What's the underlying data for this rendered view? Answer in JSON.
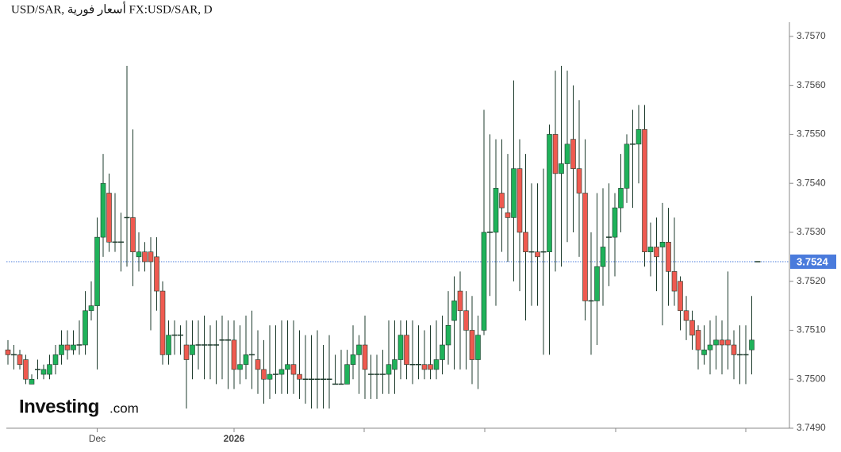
{
  "chart_data": {
    "type": "candlestick",
    "title": "USD/SAR, أسعار فورية FX:USD/SAR, D",
    "logo": {
      "name": "Investing",
      "suffix": ".com"
    },
    "categories": [
      null,
      null,
      null,
      null,
      null,
      null,
      null,
      null,
      null,
      null,
      null,
      null,
      null,
      null,
      null,
      "Dec",
      null,
      null,
      null,
      null,
      null,
      null,
      null,
      null,
      null,
      null,
      null,
      null,
      null,
      null,
      null,
      null,
      null,
      null,
      null,
      null,
      null,
      null,
      "2026",
      null,
      null,
      null,
      null,
      null,
      null,
      null,
      null,
      null,
      null,
      null,
      null,
      null,
      null,
      null,
      null,
      null,
      null,
      null,
      null,
      null,
      null,
      null,
      null,
      null,
      null,
      null,
      null,
      null,
      null,
      null,
      null,
      null,
      null,
      null,
      null,
      null,
      null,
      null,
      null,
      null,
      null,
      null,
      null,
      null,
      null,
      null,
      null,
      null,
      null,
      null,
      null,
      null,
      null,
      null,
      null,
      null,
      null,
      null,
      null,
      null,
      null,
      null,
      null,
      null,
      null,
      null,
      null,
      null,
      null,
      null,
      null,
      null,
      null,
      null,
      null,
      null,
      null,
      null,
      null,
      null,
      null,
      null,
      null,
      null,
      null,
      null,
      null
    ],
    "open": [
      3.7506,
      3.7505,
      3.7505,
      3.7504,
      3.7499,
      3.7502,
      3.7501,
      3.7501,
      3.7503,
      3.7505,
      3.7507,
      3.7506,
      3.7507,
      3.7507,
      3.7514,
      3.7515,
      3.7529,
      3.7538,
      3.7528,
      3.7528,
      3.7533,
      3.7533,
      3.7525,
      3.7526,
      3.7526,
      3.7525,
      3.7518,
      3.7505,
      3.7509,
      3.7509,
      3.7507,
      3.7505,
      3.7507,
      3.7507,
      3.7507,
      3.7507,
      3.7508,
      3.7508,
      3.7508,
      3.7502,
      3.7503,
      3.7505,
      3.7504,
      3.7502,
      3.75,
      3.7501,
      3.7501,
      3.7502,
      3.7503,
      3.7501,
      3.75,
      3.75,
      3.75,
      3.75,
      3.75,
      3.7499,
      3.7499,
      3.7499,
      3.7503,
      3.7505,
      3.7507,
      3.7501,
      3.7501,
      3.7501,
      3.7501,
      3.7502,
      3.7504,
      3.7509,
      3.7503,
      3.7503,
      3.7503,
      3.7503,
      3.7502,
      3.7504,
      3.7507,
      3.7512,
      3.7518,
      3.7514,
      3.751,
      3.7504,
      3.751,
      3.753,
      3.753,
      3.7538,
      3.7534,
      3.7533,
      3.7543,
      3.753,
      3.7526,
      3.7526,
      3.7526,
      3.7526,
      3.755,
      3.7542,
      3.7544,
      3.7549,
      3.7543,
      3.7538,
      3.7516,
      3.7516,
      3.7523,
      3.7529,
      3.7529,
      3.7535,
      3.7539,
      3.7548,
      3.7548,
      3.7551,
      3.7526,
      3.7527,
      3.7527,
      3.7528,
      3.7522,
      3.752,
      3.7514,
      3.7512,
      3.751,
      3.7505,
      3.7506,
      3.7507,
      3.7508,
      3.7508,
      3.7507,
      3.7505,
      3.7505,
      3.7506,
      3.7524
    ],
    "high": [
      3.7508,
      3.7507,
      3.7506,
      3.7505,
      3.7501,
      3.7504,
      3.7503,
      3.7505,
      3.7507,
      3.751,
      3.751,
      3.751,
      3.7512,
      3.7518,
      3.752,
      3.7533,
      3.7546,
      3.7542,
      3.7538,
      3.7534,
      3.7564,
      3.7551,
      3.753,
      3.7528,
      3.7529,
      3.7529,
      3.752,
      3.7512,
      3.7512,
      3.7511,
      3.7512,
      3.7512,
      3.7512,
      3.7513,
      3.7511,
      3.7512,
      3.7513,
      3.7512,
      3.7512,
      3.7511,
      3.7513,
      3.7514,
      3.751,
      3.7508,
      3.7511,
      3.7511,
      3.7512,
      3.7512,
      3.7512,
      3.751,
      3.7509,
      3.7509,
      3.751,
      3.7507,
      3.7509,
      3.7505,
      3.7506,
      3.7506,
      3.7511,
      3.7509,
      3.7513,
      3.7505,
      3.7505,
      3.7506,
      3.7512,
      3.7512,
      3.7512,
      3.7512,
      3.7512,
      3.7511,
      3.751,
      3.7511,
      3.7512,
      3.7513,
      3.7518,
      3.7521,
      3.7522,
      3.7518,
      3.7517,
      3.7513,
      3.7555,
      3.755,
      3.7549,
      3.7549,
      3.7546,
      3.7561,
      3.7549,
      3.7546,
      3.754,
      3.754,
      3.7543,
      3.7552,
      3.7563,
      3.7564,
      3.7563,
      3.756,
      3.7557,
      3.7549,
      3.753,
      3.7538,
      3.7539,
      3.754,
      3.7538,
      3.7546,
      3.755,
      3.7555,
      3.7556,
      3.7556,
      3.7532,
      3.7533,
      3.7536,
      3.7535,
      3.7533,
      3.7521,
      3.7517,
      3.7514,
      3.7511,
      3.7511,
      3.7512,
      3.7513,
      3.7512,
      3.7522,
      3.751,
      3.7511,
      3.7511,
      3.7517,
      3.7524
    ],
    "low": [
      3.7503,
      3.7502,
      3.7502,
      3.7499,
      3.7499,
      3.75,
      3.75,
      3.75,
      3.7501,
      3.7503,
      3.7504,
      3.7505,
      3.7505,
      3.7505,
      3.7512,
      3.7502,
      3.7525,
      3.7526,
      3.7526,
      3.7522,
      3.7523,
      3.7519,
      3.7522,
      3.7522,
      3.751,
      3.7514,
      3.7503,
      3.7503,
      3.7505,
      3.7505,
      3.7494,
      3.75,
      3.7502,
      3.75,
      3.75,
      3.7499,
      3.75,
      3.7498,
      3.7498,
      3.7499,
      3.75,
      3.7498,
      3.7497,
      3.7495,
      3.7496,
      3.7497,
      3.7497,
      3.7497,
      3.7497,
      3.7496,
      3.7495,
      3.7494,
      3.7494,
      3.7494,
      3.7494,
      3.7499,
      3.7499,
      3.7499,
      3.75,
      3.7497,
      3.7496,
      3.7496,
      3.7496,
      3.7497,
      3.7497,
      3.7497,
      3.75,
      3.75,
      3.7499,
      3.75,
      3.75,
      3.75,
      3.75,
      3.7501,
      3.7503,
      3.7502,
      3.7502,
      3.7502,
      3.7499,
      3.7498,
      3.7509,
      3.7517,
      3.7515,
      3.7526,
      3.7524,
      3.752,
      3.7518,
      3.7512,
      3.7515,
      3.7515,
      3.7505,
      3.7505,
      3.7522,
      3.7523,
      3.7528,
      3.753,
      3.7525,
      3.7512,
      3.7505,
      3.7507,
      3.7515,
      3.7519,
      3.7521,
      3.753,
      3.7536,
      3.7535,
      3.754,
      3.7523,
      3.7521,
      3.7518,
      3.7511,
      3.7515,
      3.7515,
      3.751,
      3.7508,
      3.7506,
      3.7502,
      3.7503,
      3.7501,
      3.7502,
      3.7501,
      3.7502,
      3.75,
      3.7499,
      3.7499,
      3.7501,
      3.7524
    ],
    "close": [
      3.7505,
      3.7505,
      3.7503,
      3.75,
      3.75,
      3.7502,
      3.7502,
      3.7503,
      3.7505,
      3.7507,
      3.7506,
      3.7507,
      3.7507,
      3.7514,
      3.7515,
      3.7529,
      3.754,
      3.7528,
      3.7528,
      3.7528,
      3.7533,
      3.7526,
      3.7526,
      3.7524,
      3.7524,
      3.7518,
      3.7505,
      3.7509,
      3.7509,
      3.7509,
      3.7504,
      3.7507,
      3.7507,
      3.7507,
      3.7507,
      3.7507,
      3.7508,
      3.7508,
      3.7502,
      3.7503,
      3.7505,
      3.7505,
      3.7502,
      3.75,
      3.7501,
      3.7501,
      3.7502,
      3.7503,
      3.7501,
      3.75,
      3.75,
      3.75,
      3.75,
      3.75,
      3.75,
      3.7499,
      3.7499,
      3.7503,
      3.7505,
      3.7507,
      3.7502,
      3.7501,
      3.7501,
      3.7501,
      3.7503,
      3.7504,
      3.7509,
      3.7503,
      3.7503,
      3.7503,
      3.7502,
      3.7502,
      3.7504,
      3.7507,
      3.7511,
      3.7516,
      3.7514,
      3.751,
      3.7504,
      3.7509,
      3.753,
      3.753,
      3.7539,
      3.7535,
      3.7533,
      3.7543,
      3.753,
      3.7526,
      3.7526,
      3.7525,
      3.7526,
      3.755,
      3.7542,
      3.7544,
      3.7548,
      3.7543,
      3.7538,
      3.7516,
      3.7516,
      3.7523,
      3.7527,
      3.7529,
      3.7535,
      3.7539,
      3.7548,
      3.7548,
      3.7551,
      3.7526,
      3.7527,
      3.7525,
      3.7528,
      3.7522,
      3.7518,
      3.7514,
      3.7512,
      3.7509,
      3.7506,
      3.7506,
      3.7507,
      3.7508,
      3.7507,
      3.7507,
      3.7505,
      3.7505,
      3.7505,
      3.7508,
      3.7524
    ],
    "up_color": "#1fb25a",
    "down_color": "#ef5a50",
    "wick_color": "#1d3b2c",
    "last_price": 3.7524,
    "last_price_color": "#4a7bdc",
    "ylim": [
      3.749,
      3.75729
    ],
    "yticks": [
      {
        "value": 3.749,
        "label": "3.7490"
      },
      {
        "value": 3.75,
        "label": "3.7500"
      },
      {
        "value": 3.751,
        "label": "3.7510"
      },
      {
        "value": 3.752,
        "label": "3.7520"
      },
      {
        "value": 3.753,
        "label": "3.7530"
      },
      {
        "value": 3.754,
        "label": "3.7540"
      },
      {
        "value": 3.755,
        "label": "3.7550"
      },
      {
        "value": 3.756,
        "label": "3.7560"
      },
      {
        "value": 3.757,
        "label": "3.7570"
      }
    ]
  }
}
